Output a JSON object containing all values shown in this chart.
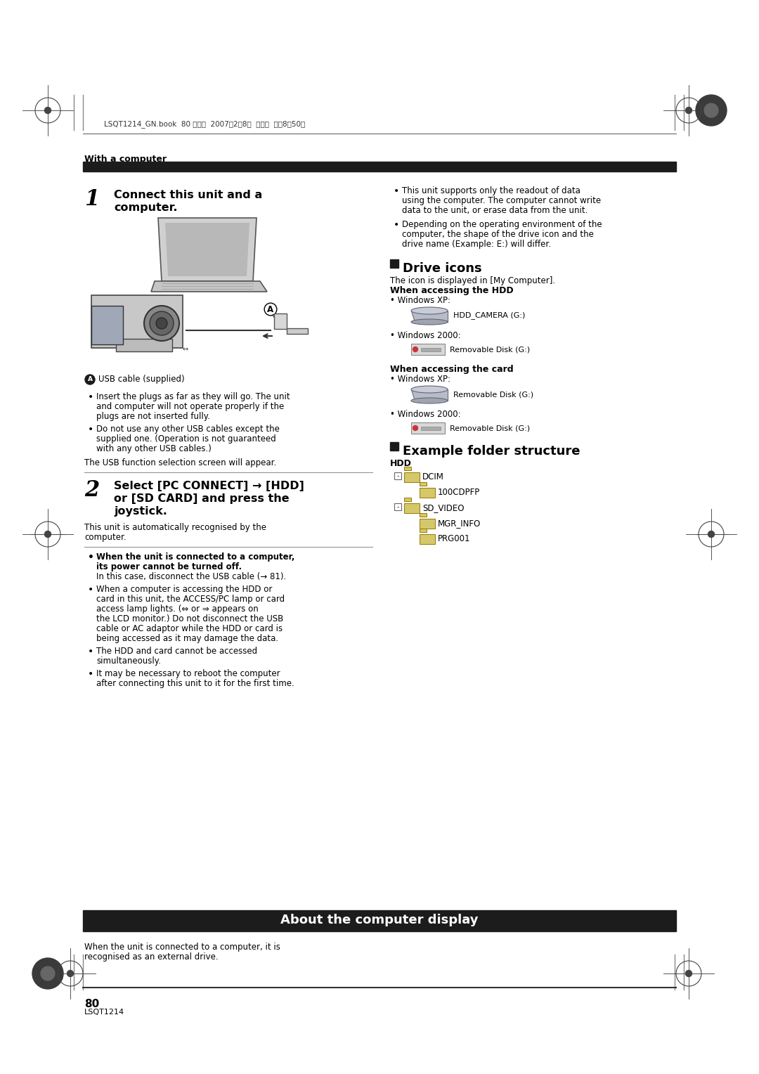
{
  "bg_color": "#ffffff",
  "page_width": 10.8,
  "page_height": 15.28,
  "header_text": "LSQT1214_GN.book  80 ページ  2007年2月8日  木曜日  午後8時50分",
  "with_computer": "With a computer",
  "step1_number": "1",
  "step1_line1": "Connect this unit and a",
  "step1_line2": "computer.",
  "bullet1_lines": [
    "This unit supports only the readout of data",
    "using the computer. The computer cannot write",
    "data to the unit, or erase data from the unit."
  ],
  "bullet2_lines": [
    "Depending on the operating environment of the",
    "computer, the shape of the drive icon and the",
    "drive name (Example: E:) will differ."
  ],
  "drive_icons_title": "Drive icons",
  "drive_icons_sub": "The icon is displayed in [My Computer].",
  "when_hdd": "When accessing the HDD",
  "winxp_hdd": "• Windows XP:",
  "winxp_hdd_label": "HDD_CAMERA (G:)",
  "win2000_hdd": "• Windows 2000:",
  "win2000_hdd_label": "Removable Disk (G:)",
  "when_card": "When accessing the card",
  "winxp_card": "• Windows XP:",
  "winxp_card_label": "Removable Disk (G:)",
  "win2000_card": "• Windows 2000:",
  "win2000_card_label": "Removable Disk (G:)",
  "example_folder_title": "Example folder structure",
  "hdd_label": "HDD",
  "folder_tree": [
    {
      "level": 0,
      "name": "DCIM"
    },
    {
      "level": 1,
      "name": "100CDPFP"
    },
    {
      "level": 0,
      "name": "SD_VIDEO"
    },
    {
      "level": 1,
      "name": "MGR_INFO"
    },
    {
      "level": 1,
      "name": "PRG001"
    }
  ],
  "usb_a_label": "USB cable (supplied)",
  "usb_bullet1_lines": [
    "Insert the plugs as far as they will go. The unit",
    "and computer will not operate properly if the",
    "plugs are not inserted fully."
  ],
  "usb_bullet2_lines": [
    "Do not use any other USB cables except the",
    "supplied one. (Operation is not guaranteed",
    "with any other USB cables.)"
  ],
  "usb_function": "The USB function selection screen will appear.",
  "step2_number": "2",
  "step2_line1": "Select [PC CONNECT] → [HDD]",
  "step2_line2": "or [SD CARD] and press the",
  "step2_line3": "joystick.",
  "step2_sub1": "This unit is automatically recognised by the",
  "step2_sub2": "computer.",
  "warn_bold1": "When the unit is connected to a computer,",
  "warn_bold2": "its power cannot be turned off.",
  "warn_normal1": "In this case, disconnect the USB cable (→ 81).",
  "warn_bullet2_lines": [
    "When a computer is accessing the HDD or",
    "card in this unit, the ACCESS/PC lamp or card",
    "access lamp lights. (⇔ or ⇒ appears on",
    "the LCD monitor.) Do not disconnect the USB",
    "cable or AC adaptor while the HDD or card is",
    "being accessed as it may damage the data."
  ],
  "warn_bullet3_lines": [
    "The HDD and card cannot be accessed",
    "simultaneously."
  ],
  "warn_bullet4_lines": [
    "It may be necessary to reboot the computer",
    "after connecting this unit to it for the first time."
  ],
  "about_title": "About the computer display",
  "about_line1": "When the unit is connected to a computer, it is",
  "about_line2": "recognised as an external drive.",
  "page_number": "80",
  "page_code": "LSQT1214"
}
